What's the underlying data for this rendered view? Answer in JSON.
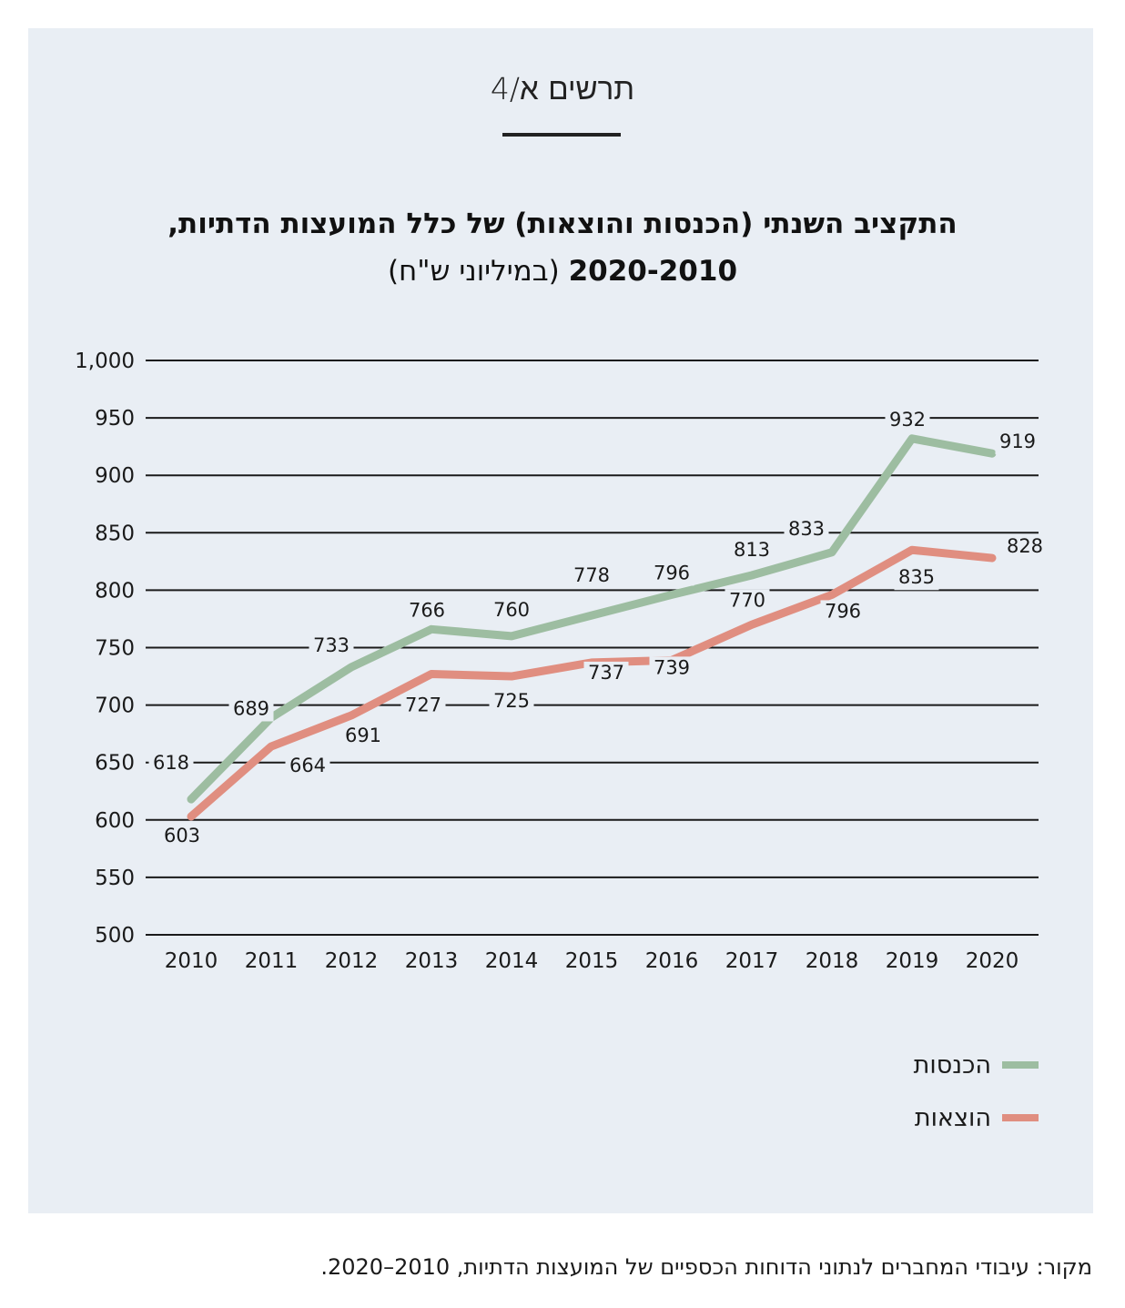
{
  "figure_label": "תרשים א/4",
  "title_line1": "התקציב השנתי (הכנסות והוצאות) של כלל המועצות הדתיות,",
  "title_years": "2020-2010",
  "title_unit": "(במיליוני ש\"ח)",
  "source": "מקור: עיבודי המחברים לנתוני הדוחות הכספיים של המועצות הדתיות, 2010–2020.",
  "colors": {
    "income": "#9dbda1",
    "expense": "#e08e80",
    "grid": "#1a1a1a",
    "panel": "#e9eef4"
  },
  "chart_data": {
    "type": "line",
    "categories": [
      "2010",
      "2011",
      "2012",
      "2013",
      "2014",
      "2015",
      "2016",
      "2017",
      "2018",
      "2019",
      "2020"
    ],
    "y_ticks": [
      "500",
      "550",
      "600",
      "650",
      "700",
      "750",
      "800",
      "850",
      "900",
      "950",
      "1,000"
    ],
    "ylim": [
      500,
      1000
    ],
    "grid": true,
    "legend_position": "bottom-right",
    "series": [
      {
        "key": "income",
        "name": "הכנסות",
        "values": [
          618,
          689,
          733,
          766,
          760,
          778,
          796,
          813,
          833,
          932,
          919
        ]
      },
      {
        "key": "expense",
        "name": "הוצאות",
        "values": [
          603,
          664,
          691,
          727,
          725,
          737,
          739,
          770,
          796,
          835,
          828
        ]
      }
    ]
  }
}
